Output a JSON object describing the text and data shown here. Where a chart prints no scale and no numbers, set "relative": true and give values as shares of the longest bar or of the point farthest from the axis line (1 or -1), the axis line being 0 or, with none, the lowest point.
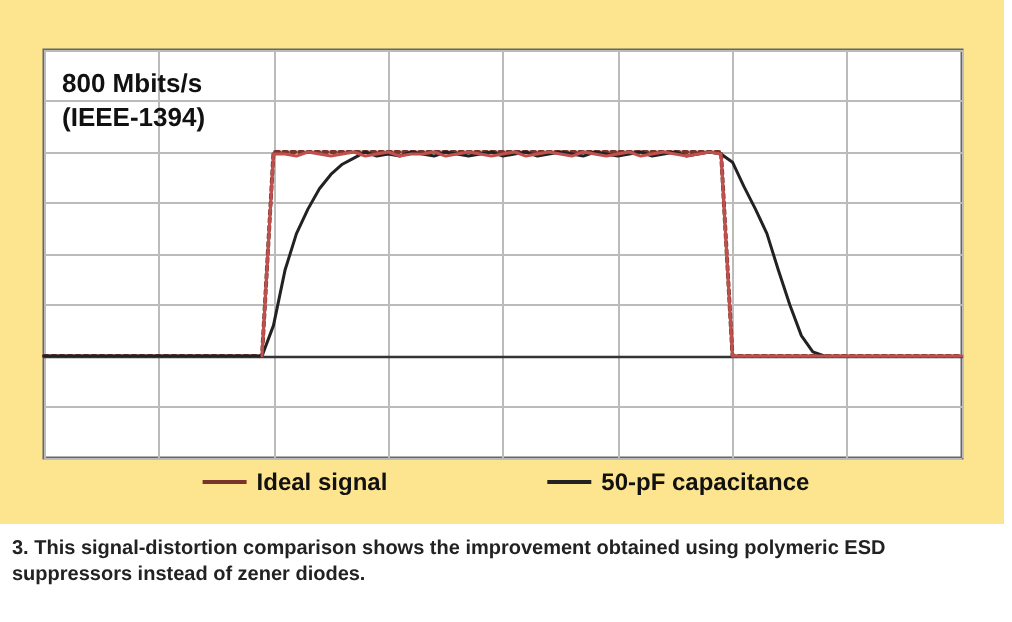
{
  "chart_data": {
    "type": "line",
    "title": "800 Mbits/s\n(IEEE-1394)",
    "relative": true,
    "grid": true,
    "legend": "bottom",
    "categories": [
      null,
      null,
      null,
      null,
      null,
      null,
      null,
      null,
      null,
      null,
      null,
      null,
      null,
      null,
      null,
      null,
      null,
      null,
      null,
      null,
      null,
      null,
      null,
      null,
      null,
      null,
      null,
      null,
      null,
      null,
      null,
      null,
      null,
      null,
      null,
      null,
      null,
      null,
      null,
      null,
      null,
      null,
      null,
      null,
      null,
      null,
      null,
      null,
      null,
      null,
      null,
      null,
      null,
      null,
      null,
      null,
      null,
      null,
      null,
      null,
      null,
      null,
      null,
      null,
      null,
      null,
      null,
      null,
      null,
      null,
      null,
      null,
      null,
      null,
      null,
      null,
      null,
      null,
      null,
      null,
      null
    ],
    "series": [
      {
        "name": "Ideal signal",
        "color": "#7a3328",
        "line_style": "dotted",
        "values": [
          0,
          0,
          0,
          0,
          0,
          0,
          0,
          0,
          0,
          0,
          0,
          0,
          0,
          0,
          0,
          0,
          0,
          0,
          0,
          0,
          1,
          1,
          1,
          1,
          1,
          1,
          1,
          1,
          1,
          1,
          1,
          1,
          1,
          1,
          1,
          1,
          1,
          1,
          1,
          1,
          1,
          1,
          1,
          1,
          1,
          1,
          1,
          1,
          1,
          1,
          1,
          1,
          1,
          1,
          1,
          1,
          1,
          1,
          1,
          1,
          0,
          0,
          0,
          0,
          0,
          0,
          0,
          0,
          0,
          0,
          0,
          0,
          0,
          0,
          0,
          0,
          0,
          0,
          0,
          0,
          0
        ]
      },
      {
        "color": "#c0504d",
        "line_style": "solid",
        "values": [
          null,
          null,
          null,
          null,
          null,
          null,
          null,
          null,
          null,
          null,
          null,
          null,
          null,
          null,
          null,
          null,
          null,
          null,
          null,
          0,
          0.99,
          0.99,
          0.98,
          1,
          0.99,
          0.98,
          0.99,
          1,
          0.98,
          0.99,
          1,
          0.98,
          0.99,
          0.99,
          1,
          0.98,
          0.99,
          1,
          0.99,
          0.98,
          0.99,
          1,
          0.98,
          0.99,
          1,
          0.99,
          0.98,
          1,
          0.99,
          0.98,
          0.99,
          1,
          0.98,
          0.99,
          1,
          0.99,
          0.98,
          0.99,
          1,
          0.99,
          0,
          0,
          0,
          0,
          0,
          0,
          0,
          0,
          0,
          0,
          0,
          0,
          0,
          0,
          0,
          0,
          0,
          0,
          0,
          0,
          0
        ]
      },
      {
        "name": "50-pF capacitance",
        "color": "#222222",
        "line_style": "solid",
        "values": [
          0,
          0,
          0,
          0,
          0,
          0,
          0,
          0,
          0,
          0,
          0,
          0,
          0,
          0,
          0,
          0,
          0,
          0,
          0,
          0,
          0.15,
          0.42,
          0.6,
          0.72,
          0.82,
          0.89,
          0.94,
          0.97,
          1,
          0.98,
          0.99,
          0.98,
          1,
          0.99,
          0.98,
          1,
          0.99,
          0.98,
          0.99,
          1,
          0.98,
          0.99,
          1,
          0.98,
          0.99,
          1,
          0.99,
          0.98,
          1,
          0.99,
          0.98,
          0.99,
          1,
          0.98,
          0.99,
          1,
          0.98,
          0.99,
          1,
          0.99,
          0.95,
          0.83,
          0.72,
          0.6,
          0.42,
          0.25,
          0.1,
          0.02,
          0,
          null,
          null,
          null,
          null,
          null,
          null,
          null,
          null,
          null,
          null,
          null,
          null
        ]
      }
    ],
    "annotations": [
      "3. This signal-distortion comparison shows the improvement obtained using polymeric ESD suppressors instead of zener diodes."
    ]
  }
}
